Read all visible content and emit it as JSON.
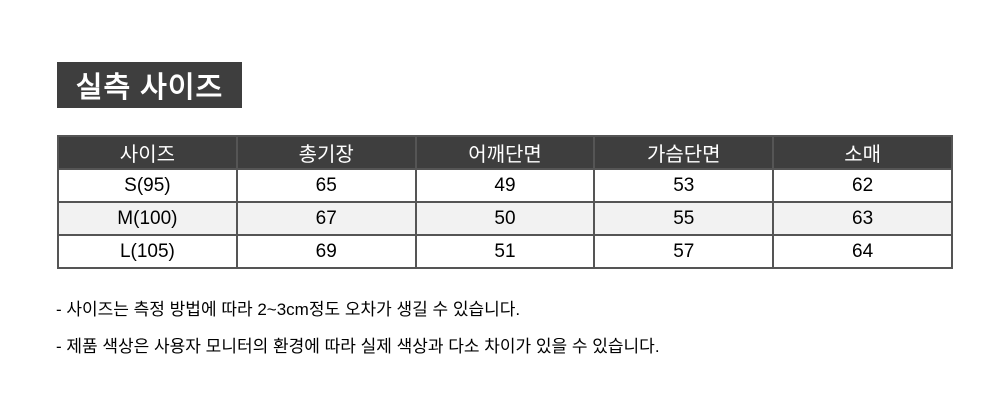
{
  "title": {
    "text": "실측 사이즈"
  },
  "size_table": {
    "headers": [
      "사이즈",
      "총기장",
      "어깨단면",
      "가슴단면",
      "소매"
    ],
    "rows": [
      [
        "S(95)",
        "65",
        "49",
        "53",
        "62"
      ],
      [
        "M(100)",
        "67",
        "50",
        "55",
        "63"
      ],
      [
        "L(105)",
        "69",
        "51",
        "57",
        "64"
      ]
    ]
  },
  "notes": [
    "- 사이즈는 측정 방법에 따라 2~3cm정도 오차가 생길 수 있습니다.",
    "- 제품 색상은 사용자 모니터의 환경에 따라 실제 색상과 다소 차이가 있을 수 있습니다."
  ],
  "colors": {
    "page_bg": "#ffffff",
    "header_bg": "#3e3e3e",
    "header_text": "#ffffff",
    "border": "#555555",
    "alt_row": "#f2f2f2",
    "body_text": "#000000"
  }
}
